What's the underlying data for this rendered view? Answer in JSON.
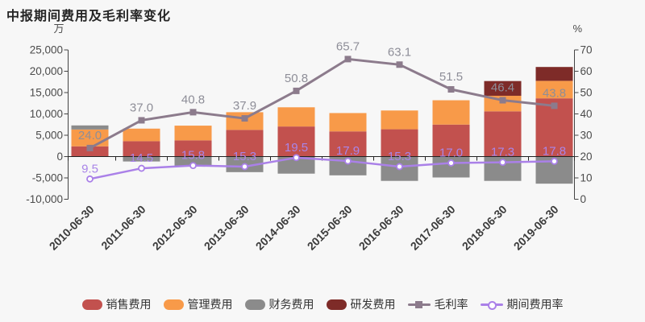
{
  "title": "中报期间费用及毛利率变化",
  "chart_data": {
    "type": "combo-stacked-bar-line",
    "categories": [
      "2010-06-30",
      "2011-06-30",
      "2012-06-30",
      "2013-06-30",
      "2014-06-30",
      "2015-06-30",
      "2016-06-30",
      "2017-06-30",
      "2018-06-30",
      "2019-06-30"
    ],
    "left_axis": {
      "unit": "万",
      "min": -10000,
      "max": 25000,
      "step": 5000
    },
    "right_axis": {
      "unit": "%",
      "min": 0,
      "max": 70,
      "step": 10
    },
    "grid": false,
    "series": [
      {
        "name": "销售费用",
        "type": "bar",
        "axis": "left",
        "color": "#c2514e",
        "values": [
          2400,
          3600,
          3800,
          6250,
          7050,
          5900,
          6400,
          7500,
          10600,
          13650
        ]
      },
      {
        "name": "管理费用",
        "type": "bar",
        "axis": "left",
        "color": "#f89a49",
        "values": [
          3950,
          2950,
          3450,
          4150,
          4500,
          4300,
          4400,
          5700,
          3650,
          4100
        ]
      },
      {
        "name": "财务费用",
        "type": "bar",
        "axis": "left",
        "color": "#8b8b8b",
        "values": [
          950,
          -1150,
          -2250,
          -3650,
          -4000,
          -4400,
          -5700,
          -4900,
          -5700,
          -6350
        ]
      },
      {
        "name": "研发费用",
        "type": "bar",
        "axis": "left",
        "color": "#7e2b28",
        "values": [
          0,
          0,
          0,
          0,
          0,
          0,
          0,
          0,
          3450,
          3250
        ]
      },
      {
        "name": "毛利率",
        "type": "line",
        "axis": "right",
        "color": "#8c7b8c",
        "marker": "square",
        "label_color": "#8e8e98",
        "values": [
          24.0,
          37.0,
          40.8,
          37.9,
          50.8,
          65.7,
          63.1,
          51.5,
          46.4,
          43.8
        ]
      },
      {
        "name": "期间费用率",
        "type": "line",
        "axis": "right",
        "color": "#aa80e8",
        "marker": "circle-open",
        "label_color": "#a985e8",
        "values": [
          9.5,
          14.5,
          15.8,
          15.3,
          19.5,
          17.9,
          15.3,
          17.0,
          17.3,
          17.8
        ]
      }
    ]
  },
  "legend": {
    "items": [
      {
        "label": "销售费用",
        "swatch": "bar",
        "color": "#c2514e"
      },
      {
        "label": "管理费用",
        "swatch": "bar",
        "color": "#f89a49"
      },
      {
        "label": "财务费用",
        "swatch": "bar",
        "color": "#8b8b8b"
      },
      {
        "label": "研发费用",
        "swatch": "bar",
        "color": "#7e2b28"
      },
      {
        "label": "毛利率",
        "swatch": "line-square",
        "color": "#8c7b8c"
      },
      {
        "label": "期间费用率",
        "swatch": "line-circle",
        "color": "#aa80e8"
      }
    ]
  },
  "colors": {
    "background": "#f7f7f7",
    "axis_line": "#444444",
    "zero_line": "#222222",
    "axis_text": "#4b4b4b",
    "date_text": "#3c3c3c",
    "title_text": "#252525"
  }
}
